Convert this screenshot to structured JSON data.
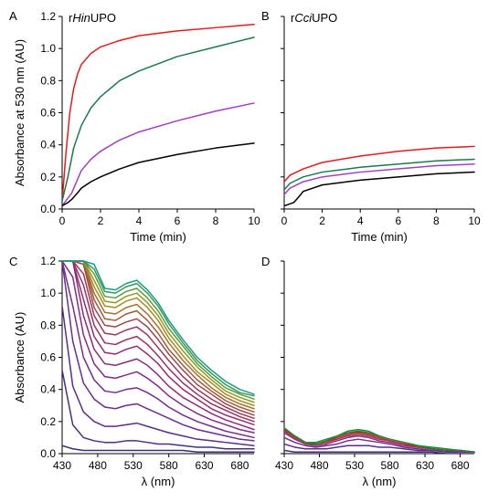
{
  "chart_data": [
    {
      "panel": "A",
      "type": "line",
      "title_parts": [
        {
          "t": "r",
          "i": false
        },
        {
          "t": "Hin",
          "i": true
        },
        {
          "t": "UPO",
          "i": false
        }
      ],
      "xlabel": "Time (min)",
      "ylabel": "Absorbance at 530 nm (AU)",
      "xlim": [
        0,
        10
      ],
      "ylim": [
        0,
        1.2
      ],
      "xticks": [
        0,
        2,
        4,
        6,
        8,
        10
      ],
      "yticks": [
        0,
        0.2,
        0.4,
        0.6,
        0.8,
        1.0,
        1.2
      ],
      "ytick_labels": [
        "0.0",
        "0.2",
        "0.4",
        "0.6",
        "0.8",
        "1.0",
        "1.2"
      ],
      "show_yticklabels": true,
      "series": [
        {
          "color": "#e41a1c",
          "x": [
            0,
            0.2,
            0.4,
            0.6,
            0.8,
            1,
            1.5,
            2,
            3,
            4,
            6,
            8,
            10
          ],
          "y": [
            0.05,
            0.35,
            0.6,
            0.75,
            0.84,
            0.9,
            0.97,
            1.01,
            1.05,
            1.08,
            1.11,
            1.13,
            1.15
          ]
        },
        {
          "color": "#1a7a4c",
          "x": [
            0,
            0.3,
            0.6,
            1,
            1.5,
            2,
            3,
            4,
            6,
            8,
            10
          ],
          "y": [
            0.05,
            0.2,
            0.38,
            0.52,
            0.63,
            0.7,
            0.8,
            0.86,
            0.95,
            1.01,
            1.07
          ]
        },
        {
          "color": "#a23fc2",
          "x": [
            0,
            0.5,
            1,
            1.5,
            2,
            3,
            4,
            6,
            8,
            10
          ],
          "y": [
            0.02,
            0.1,
            0.24,
            0.31,
            0.36,
            0.43,
            0.48,
            0.55,
            0.61,
            0.66
          ]
        },
        {
          "color": "#000000",
          "x": [
            0,
            0.3,
            0.5,
            0.8,
            1,
            1.5,
            2,
            3,
            4,
            6,
            8,
            10
          ],
          "y": [
            0.02,
            0.04,
            0.06,
            0.1,
            0.13,
            0.17,
            0.2,
            0.25,
            0.29,
            0.34,
            0.38,
            0.41
          ]
        }
      ]
    },
    {
      "panel": "B",
      "type": "line",
      "title_parts": [
        {
          "t": "r",
          "i": false
        },
        {
          "t": "Cci",
          "i": true
        },
        {
          "t": "UPO",
          "i": false
        }
      ],
      "xlabel": "Time (min)",
      "ylabel": "",
      "xlim": [
        0,
        10
      ],
      "ylim": [
        0,
        1.2
      ],
      "xticks": [
        0,
        2,
        4,
        6,
        8,
        10
      ],
      "yticks": [
        0,
        0.2,
        0.4,
        0.6,
        0.8,
        1.0,
        1.2
      ],
      "show_yticklabels": false,
      "series": [
        {
          "color": "#e41a1c",
          "x": [
            0,
            0.3,
            1,
            2,
            4,
            6,
            8,
            10
          ],
          "y": [
            0.17,
            0.21,
            0.25,
            0.29,
            0.33,
            0.36,
            0.38,
            0.39
          ]
        },
        {
          "color": "#1a7a4c",
          "x": [
            0,
            0.3,
            1,
            2,
            4,
            6,
            8,
            10
          ],
          "y": [
            0.12,
            0.16,
            0.2,
            0.23,
            0.26,
            0.28,
            0.3,
            0.31
          ]
        },
        {
          "color": "#a23fc2",
          "x": [
            0,
            0.3,
            1,
            2,
            4,
            6,
            8,
            10
          ],
          "y": [
            0.09,
            0.13,
            0.17,
            0.2,
            0.23,
            0.25,
            0.27,
            0.28
          ]
        },
        {
          "color": "#000000",
          "x": [
            0,
            0.5,
            0.8,
            1,
            2,
            4,
            6,
            8,
            10
          ],
          "y": [
            0.02,
            0.04,
            0.08,
            0.11,
            0.15,
            0.18,
            0.2,
            0.22,
            0.23
          ]
        }
      ]
    },
    {
      "panel": "C",
      "type": "line",
      "xlabel": "λ (nm)",
      "ylabel": "Absorbance (AU)",
      "xlim": [
        430,
        700
      ],
      "ylim": [
        0,
        1.2
      ],
      "xticks": [
        430,
        480,
        530,
        580,
        630,
        680
      ],
      "yticks": [
        0,
        0.2,
        0.4,
        0.6,
        0.8,
        1.0,
        1.2
      ],
      "ytick_labels": [
        "0.0",
        "0.2",
        "0.4",
        "0.6",
        "0.8",
        "1.0",
        "1.2"
      ],
      "show_yticklabels": true,
      "wavelengths": [
        430,
        445,
        460,
        475,
        490,
        505,
        520,
        535,
        550,
        565,
        580,
        600,
        620,
        640,
        660,
        680,
        700
      ],
      "series": [
        {
          "color": "#3a2f78",
          "y": [
            0.05,
            0.03,
            0.02,
            0.02,
            0.02,
            0.02,
            0.02,
            0.02,
            0.02,
            0.02,
            0.02,
            0.02,
            0.01,
            0.01,
            0.01,
            0.01,
            0.01
          ]
        },
        {
          "color": "#4a2d82",
          "y": [
            0.52,
            0.18,
            0.1,
            0.08,
            0.07,
            0.07,
            0.08,
            0.08,
            0.07,
            0.06,
            0.06,
            0.05,
            0.04,
            0.04,
            0.03,
            0.03,
            0.03
          ]
        },
        {
          "color": "#5a2d8a",
          "y": [
            0.92,
            0.42,
            0.26,
            0.2,
            0.17,
            0.17,
            0.18,
            0.19,
            0.17,
            0.15,
            0.13,
            0.11,
            0.09,
            0.08,
            0.07,
            0.06,
            0.05
          ]
        },
        {
          "color": "#6a2d90",
          "y": [
            1.2,
            0.7,
            0.44,
            0.34,
            0.29,
            0.28,
            0.3,
            0.31,
            0.28,
            0.25,
            0.22,
            0.18,
            0.15,
            0.13,
            0.11,
            0.09,
            0.08
          ]
        },
        {
          "color": "#782c8c",
          "y": [
            1.2,
            0.92,
            0.6,
            0.46,
            0.39,
            0.38,
            0.4,
            0.41,
            0.38,
            0.34,
            0.29,
            0.24,
            0.2,
            0.17,
            0.14,
            0.12,
            0.1
          ]
        },
        {
          "color": "#842b86",
          "y": [
            1.2,
            1.1,
            0.74,
            0.56,
            0.48,
            0.47,
            0.49,
            0.51,
            0.47,
            0.42,
            0.36,
            0.3,
            0.25,
            0.21,
            0.18,
            0.15,
            0.13
          ]
        },
        {
          "color": "#8c2b7c",
          "y": [
            1.2,
            1.2,
            0.86,
            0.65,
            0.56,
            0.55,
            0.57,
            0.59,
            0.55,
            0.49,
            0.42,
            0.35,
            0.3,
            0.25,
            0.21,
            0.18,
            0.15
          ]
        },
        {
          "color": "#922d6e",
          "y": [
            1.2,
            1.2,
            0.96,
            0.73,
            0.63,
            0.62,
            0.65,
            0.67,
            0.62,
            0.56,
            0.48,
            0.4,
            0.34,
            0.28,
            0.24,
            0.21,
            0.18
          ]
        },
        {
          "color": "#963262",
          "y": [
            1.2,
            1.2,
            1.05,
            0.8,
            0.69,
            0.68,
            0.71,
            0.73,
            0.68,
            0.61,
            0.53,
            0.44,
            0.37,
            0.31,
            0.27,
            0.23,
            0.2
          ]
        },
        {
          "color": "#993a55",
          "y": [
            1.2,
            1.2,
            1.12,
            0.86,
            0.75,
            0.74,
            0.77,
            0.79,
            0.74,
            0.66,
            0.58,
            0.48,
            0.4,
            0.34,
            0.29,
            0.25,
            0.22
          ]
        },
        {
          "color": "#9c4848",
          "y": [
            1.2,
            1.2,
            1.18,
            0.91,
            0.8,
            0.79,
            0.82,
            0.84,
            0.79,
            0.71,
            0.62,
            0.52,
            0.43,
            0.37,
            0.31,
            0.27,
            0.24
          ]
        },
        {
          "color": "#a35a3a",
          "y": [
            1.2,
            1.2,
            1.2,
            0.96,
            0.84,
            0.83,
            0.87,
            0.89,
            0.83,
            0.75,
            0.65,
            0.55,
            0.46,
            0.39,
            0.33,
            0.29,
            0.26
          ]
        },
        {
          "color": "#a8722c",
          "y": [
            1.2,
            1.2,
            1.2,
            1.0,
            0.88,
            0.87,
            0.91,
            0.93,
            0.87,
            0.79,
            0.69,
            0.58,
            0.49,
            0.41,
            0.35,
            0.31,
            0.28
          ]
        },
        {
          "color": "#a88b20",
          "y": [
            1.2,
            1.2,
            1.2,
            1.04,
            0.92,
            0.91,
            0.95,
            0.97,
            0.91,
            0.83,
            0.72,
            0.61,
            0.51,
            0.44,
            0.37,
            0.33,
            0.3
          ]
        },
        {
          "color": "#8e9a24",
          "y": [
            1.2,
            1.2,
            1.2,
            1.08,
            0.95,
            0.94,
            0.98,
            1.0,
            0.94,
            0.86,
            0.75,
            0.64,
            0.54,
            0.46,
            0.39,
            0.35,
            0.32
          ]
        },
        {
          "color": "#5e9a3a",
          "y": [
            1.2,
            1.2,
            1.2,
            1.12,
            0.98,
            0.97,
            1.01,
            1.03,
            0.97,
            0.89,
            0.78,
            0.67,
            0.56,
            0.48,
            0.41,
            0.37,
            0.34
          ]
        },
        {
          "color": "#2f9a5e",
          "y": [
            1.2,
            1.2,
            1.2,
            1.15,
            1.01,
            1.0,
            1.04,
            1.06,
            1.0,
            0.92,
            0.81,
            0.69,
            0.58,
            0.5,
            0.43,
            0.38,
            0.36
          ]
        },
        {
          "color": "#1e9a86",
          "y": [
            1.2,
            1.2,
            1.2,
            1.18,
            1.03,
            1.02,
            1.06,
            1.08,
            1.02,
            0.94,
            0.83,
            0.71,
            0.6,
            0.52,
            0.45,
            0.4,
            0.37
          ]
        }
      ]
    },
    {
      "panel": "D",
      "type": "line",
      "xlabel": "λ (nm)",
      "ylabel": "",
      "xlim": [
        430,
        700
      ],
      "ylim": [
        0,
        1.2
      ],
      "xticks": [
        430,
        480,
        530,
        580,
        630,
        680
      ],
      "yticks": [
        0,
        0.2,
        0.4,
        0.6,
        0.8,
        1.0,
        1.2
      ],
      "show_yticklabels": false,
      "wavelengths": [
        430,
        445,
        460,
        475,
        490,
        505,
        520,
        535,
        550,
        565,
        580,
        600,
        620,
        640,
        660,
        680,
        700
      ],
      "series": [
        {
          "color": "#3a2f78",
          "y": [
            0.02,
            0.01,
            0.01,
            0.01,
            0.01,
            0.01,
            0.01,
            0.01,
            0.01,
            0.01,
            0.01,
            0.01,
            0.01,
            0.01,
            0.0,
            0.0,
            0.0
          ]
        },
        {
          "color": "#5a2d8a",
          "y": [
            0.06,
            0.04,
            0.03,
            0.03,
            0.03,
            0.04,
            0.05,
            0.05,
            0.05,
            0.04,
            0.04,
            0.03,
            0.02,
            0.02,
            0.01,
            0.01,
            0.01
          ]
        },
        {
          "color": "#7a2c8c",
          "y": [
            0.1,
            0.07,
            0.05,
            0.04,
            0.05,
            0.06,
            0.08,
            0.09,
            0.08,
            0.07,
            0.06,
            0.04,
            0.03,
            0.02,
            0.02,
            0.01,
            0.01
          ]
        },
        {
          "color": "#8c2b7c",
          "y": [
            0.13,
            0.09,
            0.06,
            0.05,
            0.06,
            0.08,
            0.1,
            0.11,
            0.1,
            0.08,
            0.07,
            0.05,
            0.04,
            0.03,
            0.02,
            0.02,
            0.01
          ]
        },
        {
          "color": "#993a55",
          "y": [
            0.14,
            0.1,
            0.06,
            0.06,
            0.07,
            0.09,
            0.11,
            0.12,
            0.11,
            0.09,
            0.08,
            0.06,
            0.04,
            0.03,
            0.02,
            0.02,
            0.01
          ]
        },
        {
          "color": "#b03a30",
          "y": [
            0.15,
            0.1,
            0.07,
            0.06,
            0.07,
            0.1,
            0.12,
            0.13,
            0.12,
            0.1,
            0.08,
            0.06,
            0.04,
            0.03,
            0.02,
            0.02,
            0.01
          ]
        },
        {
          "color": "#d02525",
          "y": [
            0.15,
            0.11,
            0.07,
            0.06,
            0.08,
            0.1,
            0.12,
            0.135,
            0.12,
            0.1,
            0.08,
            0.06,
            0.05,
            0.03,
            0.02,
            0.02,
            0.01
          ]
        },
        {
          "color": "#2e7a2e",
          "y": [
            0.16,
            0.11,
            0.07,
            0.06,
            0.08,
            0.11,
            0.13,
            0.14,
            0.13,
            0.11,
            0.09,
            0.07,
            0.05,
            0.03,
            0.02,
            0.02,
            0.01
          ]
        },
        {
          "color": "#1e8a3a",
          "y": [
            0.16,
            0.11,
            0.07,
            0.07,
            0.09,
            0.11,
            0.14,
            0.15,
            0.14,
            0.11,
            0.09,
            0.07,
            0.05,
            0.04,
            0.03,
            0.02,
            0.01
          ]
        }
      ]
    }
  ]
}
